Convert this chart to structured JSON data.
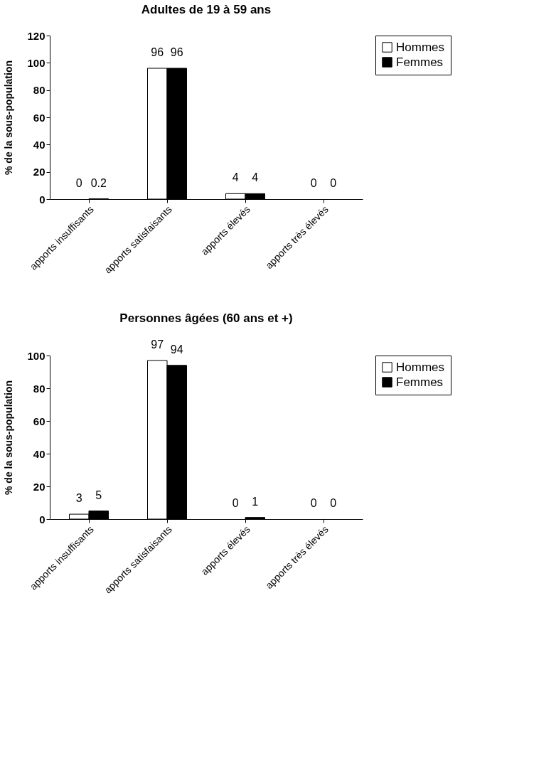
{
  "chart_data": [
    {
      "type": "bar",
      "title": "Adultes de 19 à 59 ans",
      "ylabel": "% de la sous-population",
      "categories": [
        "apports insuffisants",
        "apports satisfaisants",
        "apports élevés",
        "apports très élevés"
      ],
      "series": [
        {
          "name": "Hommes",
          "color": "#ffffff",
          "values": [
            0,
            96,
            4,
            0
          ]
        },
        {
          "name": "Femmes",
          "color": "#000000",
          "values": [
            0.2,
            96,
            4,
            0
          ]
        }
      ],
      "ylim": [
        0,
        120
      ],
      "yticks": [
        0,
        20,
        40,
        60,
        80,
        100,
        120
      ],
      "data_labels": true,
      "legend": "right",
      "grid": false
    },
    {
      "type": "bar",
      "title": "Personnes âgées (60 ans et +)",
      "ylabel": "% de la sous-population",
      "categories": [
        "apports insuffisants",
        "apports satisfaisants",
        "apports élevés",
        "apports très élevés"
      ],
      "series": [
        {
          "name": "Hommes",
          "color": "#ffffff",
          "values": [
            3,
            97,
            0,
            0
          ]
        },
        {
          "name": "Femmes",
          "color": "#000000",
          "values": [
            5,
            94,
            1,
            0
          ]
        }
      ],
      "ylim": [
        0,
        100
      ],
      "yticks": [
        0,
        20,
        40,
        60,
        80,
        100
      ],
      "data_labels": true,
      "legend": "right",
      "grid": false
    }
  ]
}
